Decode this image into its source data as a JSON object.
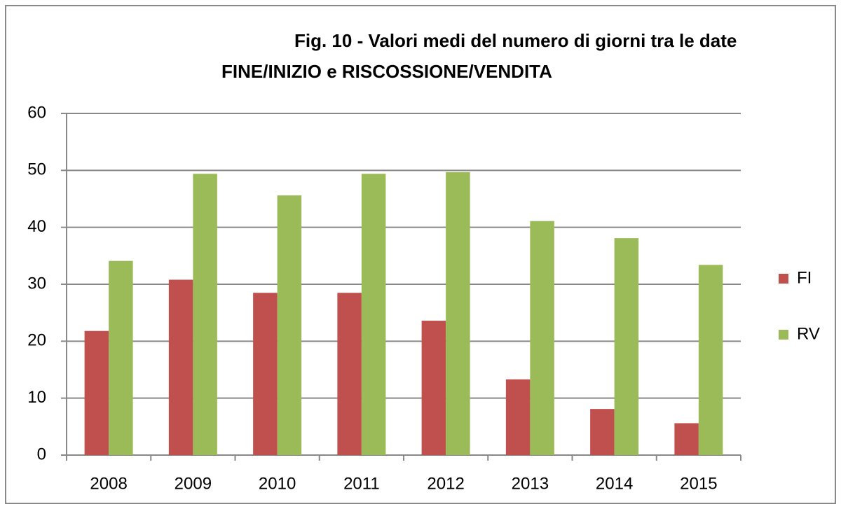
{
  "chart_data": {
    "type": "bar",
    "title": [
      "Fig. 10 - Valori medi del numero di giorni tra le date",
      "FINE/INIZIO e RISCOSSIONE/VENDITA"
    ],
    "categories": [
      "2008",
      "2009",
      "2010",
      "2011",
      "2012",
      "2013",
      "2014",
      "2015"
    ],
    "series": [
      {
        "name": "FI",
        "color": "#c0504d",
        "values": [
          21.8,
          30.8,
          28.5,
          28.5,
          23.6,
          13.3,
          8.1,
          5.6
        ]
      },
      {
        "name": "RV",
        "color": "#9bbb59",
        "values": [
          34.1,
          49.4,
          45.6,
          49.4,
          49.7,
          41.1,
          38.1,
          33.4
        ]
      }
    ],
    "ylim": [
      0,
      60
    ],
    "yticks": [
      0,
      10,
      20,
      30,
      40,
      50,
      60
    ],
    "grid": true,
    "legend": "right"
  }
}
